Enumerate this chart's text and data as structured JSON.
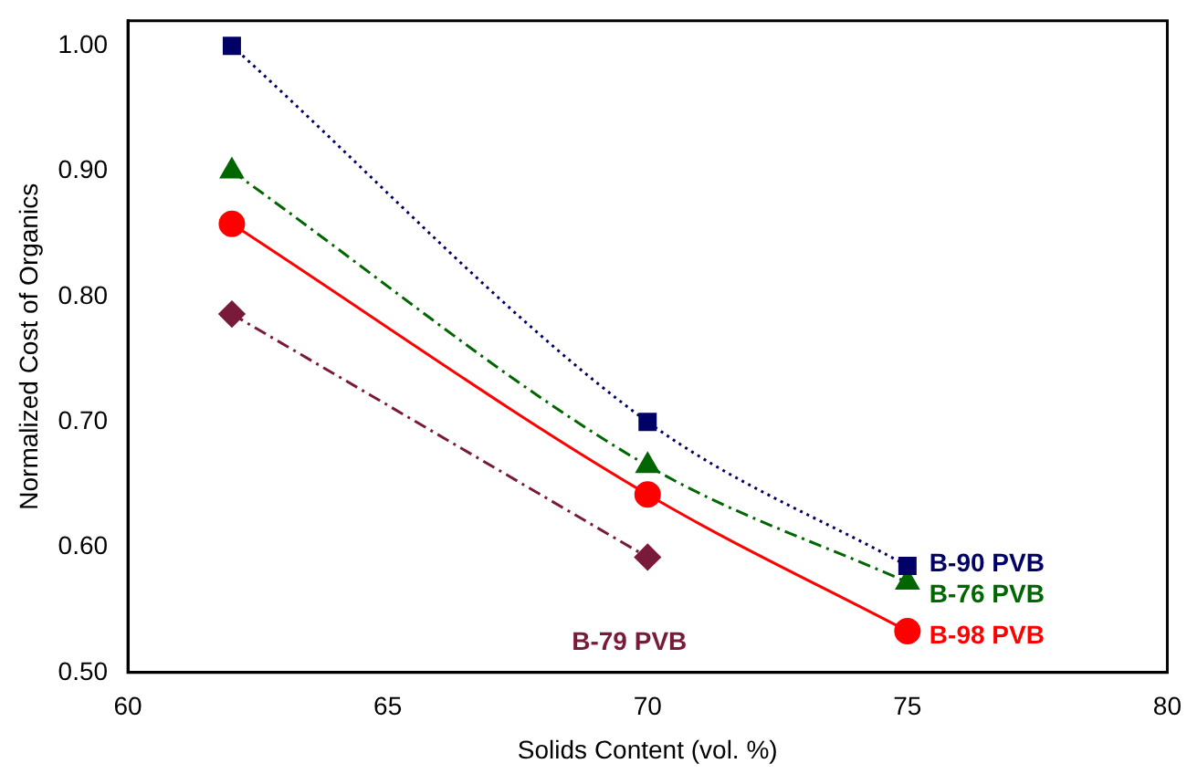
{
  "chart_data": {
    "type": "line",
    "xlabel": "Solids Content (vol. %)",
    "ylabel": "Normalized Cost of Organics",
    "x": [
      62,
      70,
      75
    ],
    "series": [
      {
        "name": "B-90 PVB",
        "color": "#000066",
        "values": [
          1.0,
          0.7,
          0.585
        ],
        "marker": "square",
        "line_style": "dotted"
      },
      {
        "name": "B-76 PVB",
        "color": "#006600",
        "values": [
          0.9,
          0.665,
          0.572
        ],
        "marker": "triangle",
        "line_style": "dashdot"
      },
      {
        "name": "B-98 PVB",
        "color": "#ff0000",
        "values": [
          0.858,
          0.642,
          0.533
        ],
        "marker": "circle",
        "line_style": "solid"
      },
      {
        "name": "B-79 PVB",
        "color": "#7a1a3a",
        "x": [
          62,
          70
        ],
        "values": [
          0.786,
          0.592
        ],
        "marker": "diamond",
        "line_style": "dashdot"
      }
    ],
    "xlim": [
      60,
      80
    ],
    "xticks": [
      60,
      65,
      70,
      75,
      80
    ],
    "ylim": [
      0.5,
      1.02
    ],
    "yticks": [
      {
        "value": 0.5,
        "label": "0.50"
      },
      {
        "value": 0.6,
        "label": "0.60"
      },
      {
        "value": 0.7,
        "label": "0.70"
      },
      {
        "value": 0.8,
        "label": "0.80"
      },
      {
        "value": 0.9,
        "label": "0.90"
      },
      {
        "value": 1.0,
        "label": "1.00"
      }
    ],
    "grid": false,
    "legend": false
  }
}
